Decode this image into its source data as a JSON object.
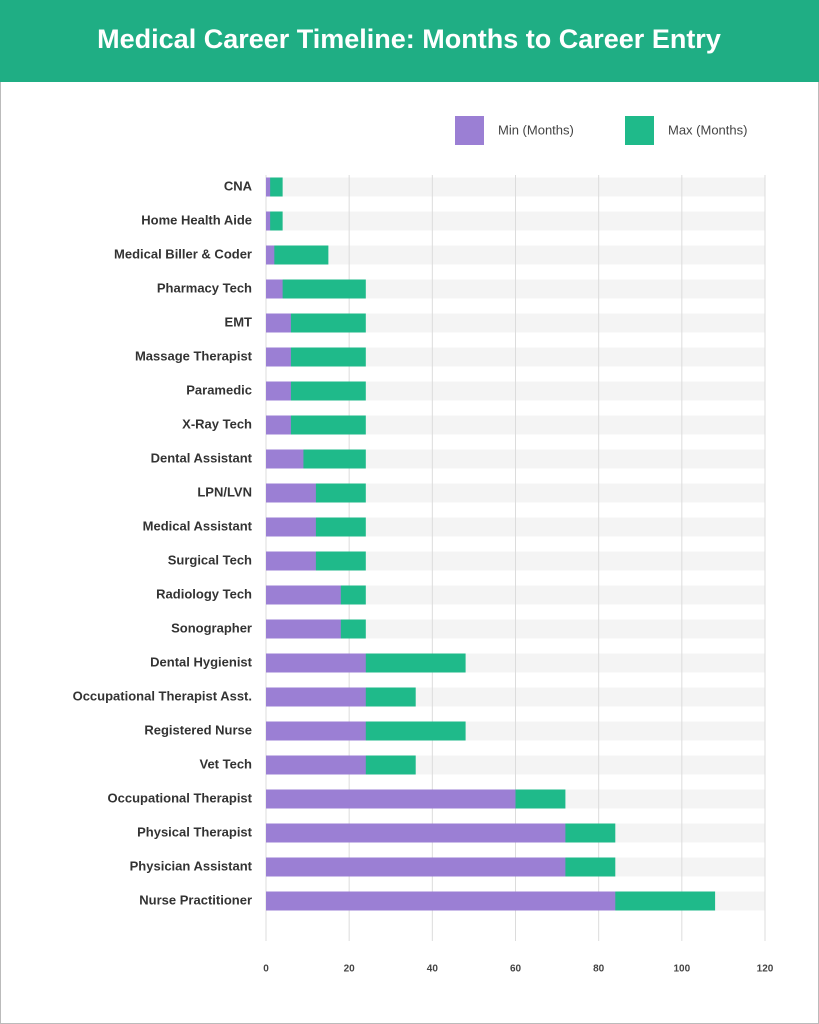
{
  "chart_data": {
    "type": "bar",
    "orientation": "horizontal",
    "title": "Medical Career Timeline: Months to Career Entry",
    "categories": [
      "CNA",
      "Home Health Aide",
      "Medical Biller & Coder",
      "Pharmacy Tech",
      "EMT",
      "Massage Therapist",
      "Paramedic",
      "X-Ray Tech",
      "Dental Assistant",
      "LPN/LVN",
      "Medical Assistant",
      "Surgical Tech",
      "Radiology Tech",
      "Sonographer",
      "Dental Hygienist",
      "Occupational Therapist Asst.",
      "Registered Nurse",
      "Vet Tech",
      "Occupational Therapist",
      "Physical Therapist",
      "Physician Assistant",
      "Nurse Practitioner"
    ],
    "series": [
      {
        "name": "Min (Months)",
        "color": "#9b7fd4",
        "values": [
          1,
          1,
          2,
          4,
          6,
          6,
          6,
          6,
          9,
          12,
          12,
          12,
          18,
          18,
          24,
          24,
          24,
          24,
          60,
          72,
          72,
          84
        ]
      },
      {
        "name": "Max (Months)",
        "color": "#1fba8a",
        "values": [
          4,
          4,
          15,
          24,
          24,
          24,
          24,
          24,
          24,
          24,
          24,
          24,
          24,
          24,
          48,
          36,
          48,
          36,
          72,
          84,
          84,
          108
        ]
      }
    ],
    "xlim": [
      0,
      120
    ],
    "xticks": [
      0,
      20,
      40,
      60,
      80,
      100,
      120
    ],
    "grid": true,
    "legend": "top-right"
  }
}
